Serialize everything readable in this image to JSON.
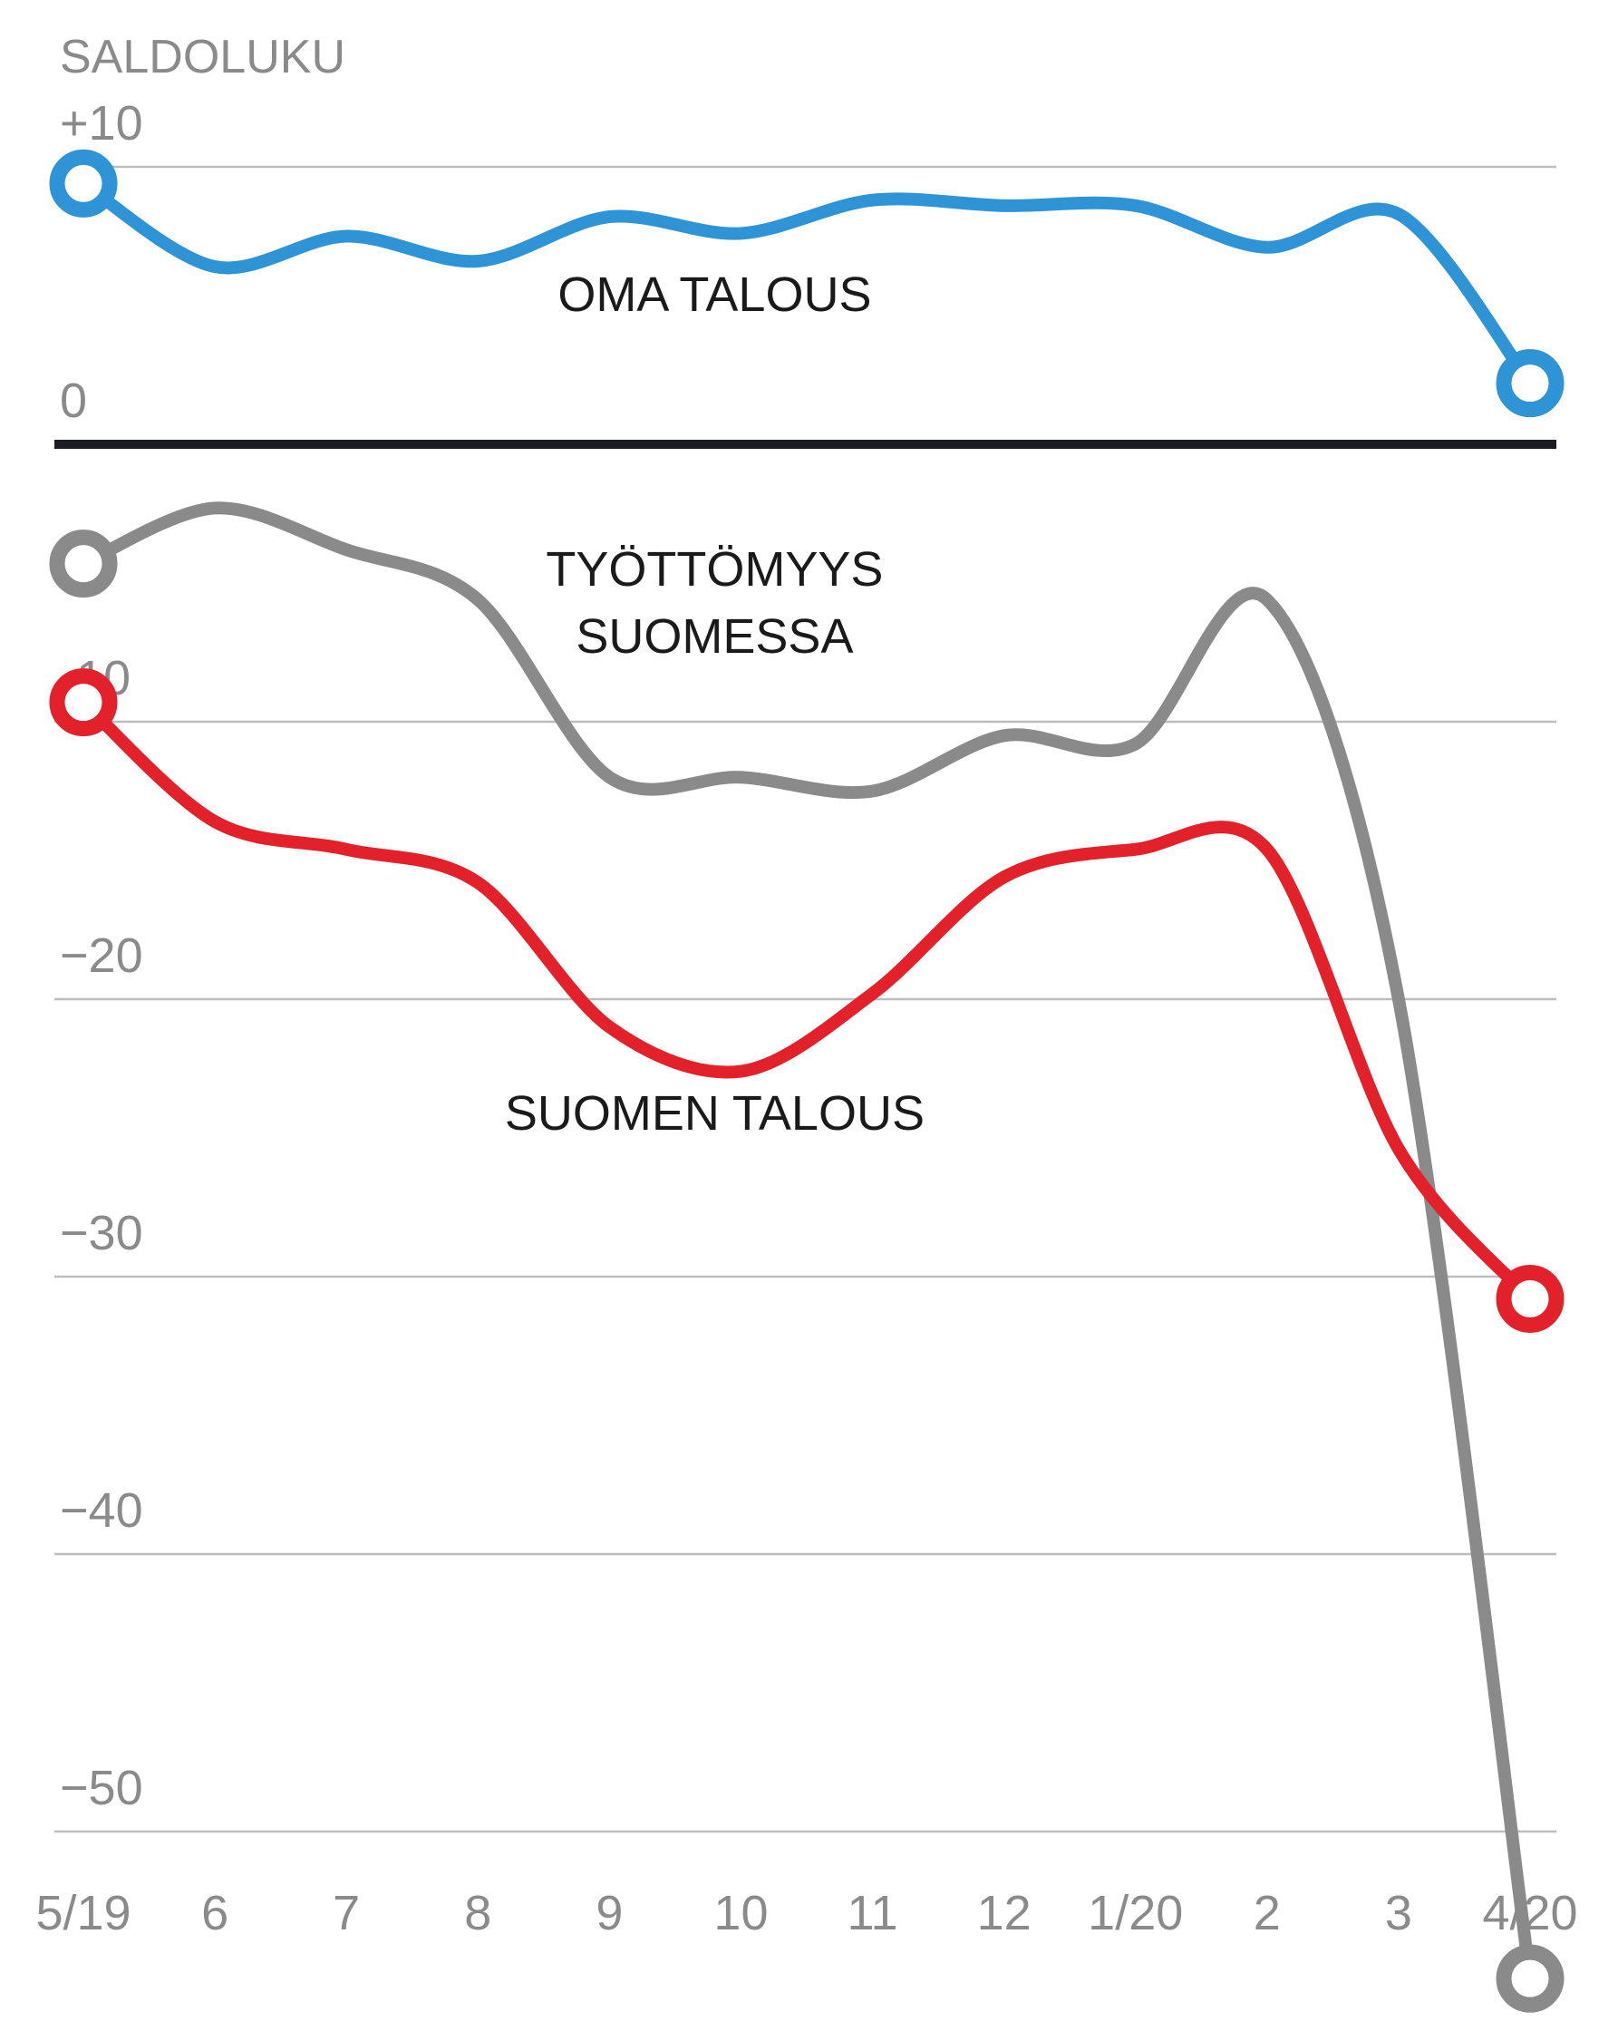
{
  "chart_data": {
    "type": "line",
    "ylabel": "SALDOLUKU",
    "ylim": [
      -50,
      10
    ],
    "y_ticks": [
      {
        "value": 10,
        "label": "+10"
      },
      {
        "value": 0,
        "label": "0"
      },
      {
        "value": -10,
        "label": "-10"
      },
      {
        "value": -20,
        "label": "−20"
      },
      {
        "value": -30,
        "label": "−30"
      },
      {
        "value": -40,
        "label": "−40"
      },
      {
        "value": -50,
        "label": "−50"
      }
    ],
    "categories": [
      "5/19",
      "6",
      "7",
      "8",
      "9",
      "10",
      "11",
      "12",
      "1/20",
      "2",
      "3",
      "4/20"
    ],
    "grid": true,
    "series": [
      {
        "name": "OMA TALOUS",
        "label_lines": [
          "OMA TALOUS"
        ],
        "label_anchor": {
          "x_index": 4.8,
          "y": 4.8
        },
        "color": "#2e94d6",
        "values": [
          9.4,
          6.4,
          7.5,
          6.6,
          8.2,
          7.6,
          8.8,
          8.6,
          8.6,
          7.1,
          8.3,
          2.2
        ]
      },
      {
        "name": "TYÖTTÖMYYS SUOMESSA",
        "label_lines": [
          "TYÖTTÖMYYS",
          "SUOMESSA"
        ],
        "label_anchor": {
          "x_index": 4.8,
          "y": -5.1
        },
        "color": "#8a8a8a",
        "values": [
          -4.3,
          -2.3,
          -3.8,
          -5.6,
          -12.0,
          -12.0,
          -12.5,
          -10.5,
          -10.8,
          -5.6,
          -20.0,
          -55.3
        ]
      },
      {
        "name": "SUOMEN TALOUS",
        "label_lines": [
          "SUOMEN TALOUS"
        ],
        "label_anchor": {
          "x_index": 4.8,
          "y": -24.7
        },
        "color": "#e3212a",
        "values": [
          -9.3,
          -13.6,
          -14.6,
          -15.8,
          -21.0,
          -22.6,
          -19.8,
          -15.6,
          -14.6,
          -14.6,
          -25.4,
          -30.8
        ]
      }
    ]
  }
}
